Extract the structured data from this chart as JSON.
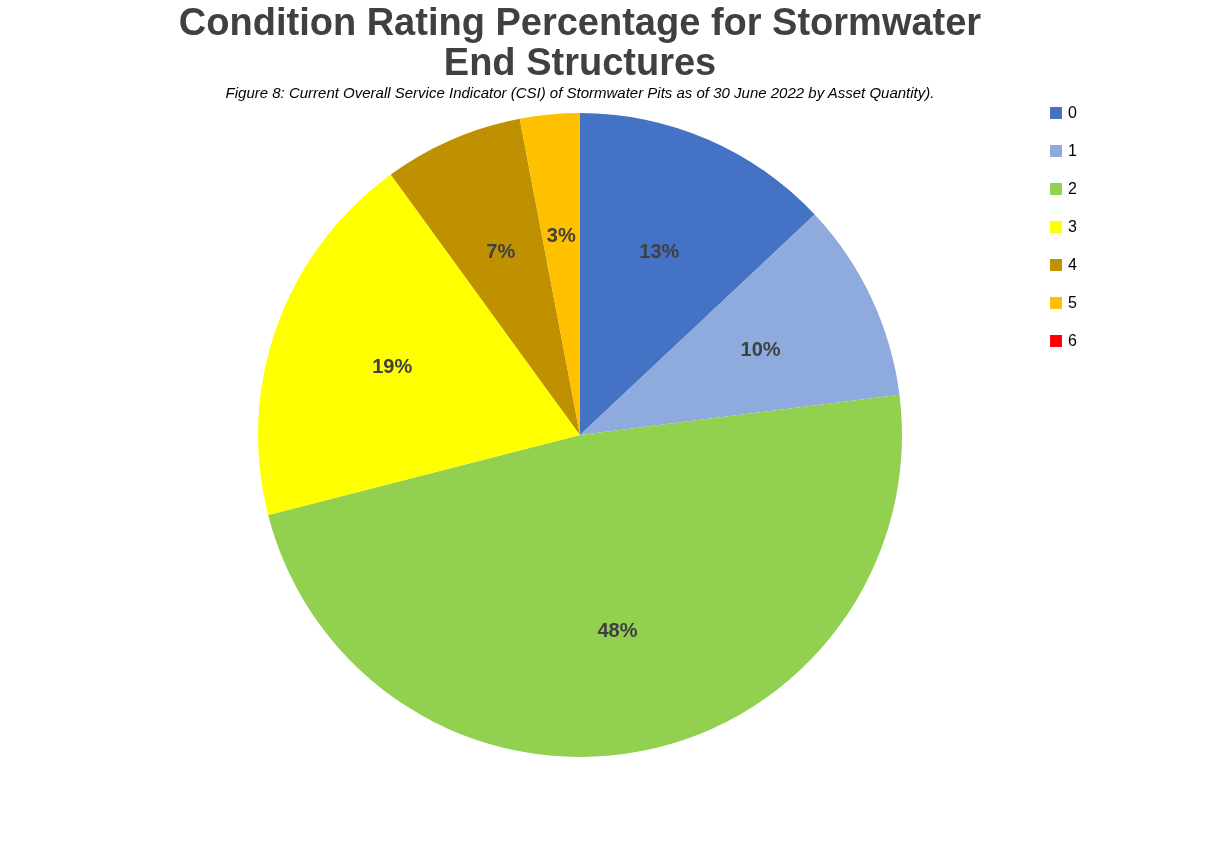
{
  "chart_data": {
    "type": "pie",
    "title": [
      "Condition Rating Percentage for Stormwater",
      "End Structures"
    ],
    "categories": [
      "0",
      "1",
      "2",
      "3",
      "4",
      "5",
      "6"
    ],
    "values": [
      13,
      10,
      48,
      19,
      7,
      3,
      0
    ],
    "colors": [
      "#4472c4",
      "#8faadc",
      "#92d050",
      "#ffff00",
      "#bf9000",
      "#ffc000",
      "#ff0000"
    ],
    "value_labels": [
      "13%",
      "10%",
      "48%",
      "19%",
      "7%",
      "3%",
      null
    ],
    "legend": "right",
    "annotations": [
      "Figure 8: Current Overall Service Indicator (CSI) of Stormwater Pits as of 30 June 2022 by Asset Quantity)."
    ]
  }
}
